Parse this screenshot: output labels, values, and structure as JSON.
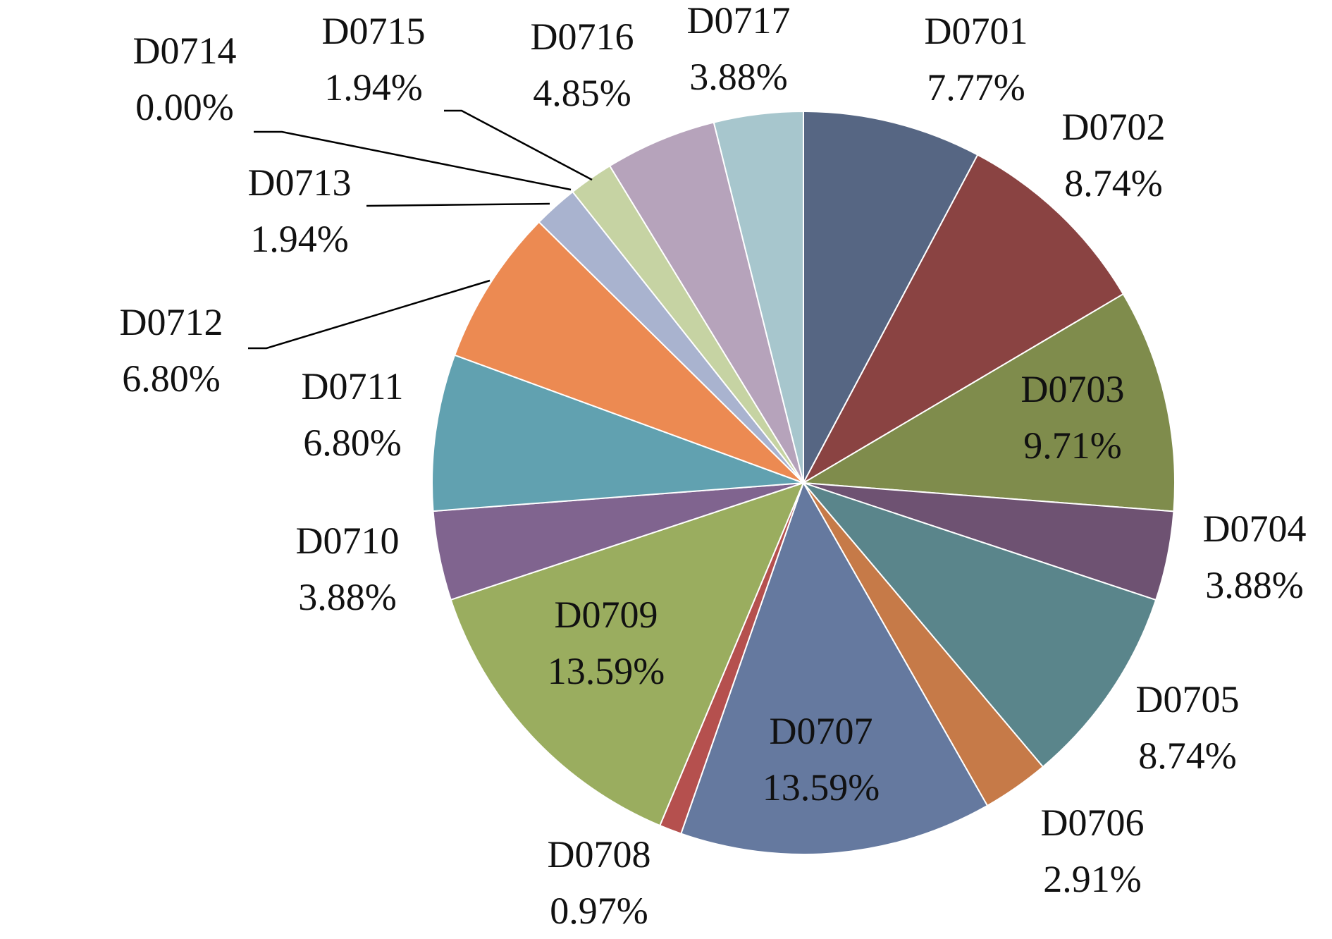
{
  "chart_data": {
    "type": "pie",
    "start_angle_deg": 0,
    "direction": "clockwise",
    "slices": [
      {
        "label": "D0701",
        "value": 7.77,
        "value_text": "7.77%",
        "color": "#566683"
      },
      {
        "label": "D0702",
        "value": 8.74,
        "value_text": "8.74%",
        "color": "#8a4342"
      },
      {
        "label": "D0703",
        "value": 9.71,
        "value_text": "9.71%",
        "color": "#7f8c4c"
      },
      {
        "label": "D0704",
        "value": 3.88,
        "value_text": "3.88%",
        "color": "#6e5272"
      },
      {
        "label": "D0705",
        "value": 8.74,
        "value_text": "8.74%",
        "color": "#5a858b"
      },
      {
        "label": "D0706",
        "value": 2.91,
        "value_text": "2.91%",
        "color": "#c67a48"
      },
      {
        "label": "D0707",
        "value": 13.59,
        "value_text": "13.59%",
        "color": "#65799f"
      },
      {
        "label": "D0708",
        "value": 0.97,
        "value_text": "0.97%",
        "color": "#b5504e"
      },
      {
        "label": "D0709",
        "value": 13.59,
        "value_text": "13.59%",
        "color": "#9aad5f"
      },
      {
        "label": "D0710",
        "value": 3.88,
        "value_text": "3.88%",
        "color": "#80648f"
      },
      {
        "label": "D0711",
        "value": 6.8,
        "value_text": "6.80%",
        "color": "#61a1b0"
      },
      {
        "label": "D0712",
        "value": 6.8,
        "value_text": "6.80%",
        "color": "#ec8a52"
      },
      {
        "label": "D0713",
        "value": 1.94,
        "value_text": "1.94%",
        "color": "#a9b3cf"
      },
      {
        "label": "D0714",
        "value": 0.0,
        "value_text": "0.00%",
        "color": "#d9a8a6"
      },
      {
        "label": "D0715",
        "value": 1.94,
        "value_text": "1.94%",
        "color": "#c6d3a3"
      },
      {
        "label": "D0716",
        "value": 4.85,
        "value_text": "4.85%",
        "color": "#b6a3bb"
      },
      {
        "label": "D0717",
        "value": 3.88,
        "value_text": "3.88%",
        "color": "#a7c6cd"
      }
    ]
  }
}
